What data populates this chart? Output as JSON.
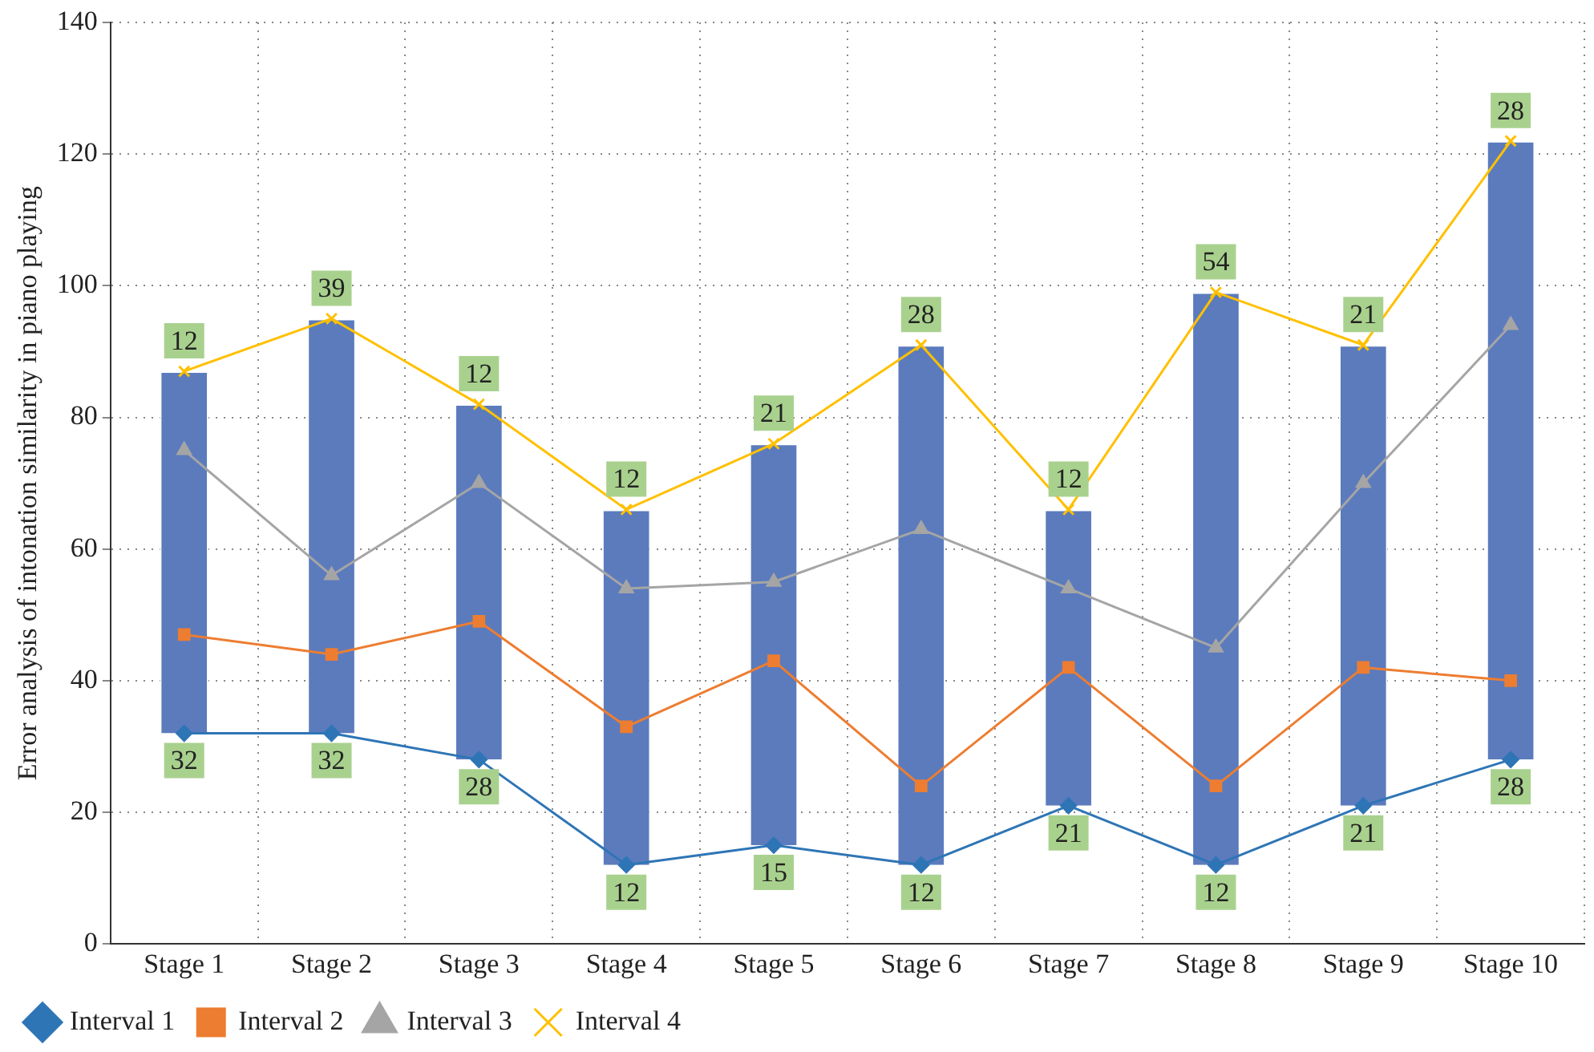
{
  "chart_data": {
    "type": "line",
    "ylabel": "Error analysis of intonation similarity in piano playing",
    "categories": [
      "Stage 1",
      "Stage 2",
      "Stage 3",
      "Stage 4",
      "Stage 5",
      "Stage 6",
      "Stage 7",
      "Stage 8",
      "Stage 9",
      "Stage 10"
    ],
    "ylim": [
      0,
      140
    ],
    "yticks": [
      0,
      20,
      40,
      60,
      80,
      100,
      120,
      140
    ],
    "grid": true,
    "legend": "bottom",
    "line_style": "solid",
    "series": [
      {
        "type": "bar",
        "color": "#5b7bbd",
        "base": [
          32,
          32,
          28,
          12,
          15,
          12,
          21,
          12,
          21,
          28
        ],
        "values": [
          55,
          63,
          54,
          54,
          61,
          79,
          45,
          87,
          70,
          94
        ]
      },
      {
        "name": "Interval 1",
        "color": "#2e75b6",
        "marker": "diamond",
        "values": [
          32,
          32,
          28,
          12,
          15,
          12,
          21,
          12,
          21,
          28
        ],
        "value_labels": [
          "32",
          "32",
          "28",
          "12",
          "15",
          "12",
          "21",
          "12",
          "21",
          "28"
        ]
      },
      {
        "name": "Interval 2",
        "color": "#ed7d31",
        "marker": "square",
        "values": [
          47,
          44,
          49,
          33,
          43,
          24,
          42,
          24,
          42,
          40
        ]
      },
      {
        "name": "Interval 3",
        "color": "#a5a5a5",
        "marker": "triangle",
        "values": [
          75,
          56,
          70,
          54,
          55,
          63,
          54,
          45,
          70,
          94
        ]
      },
      {
        "name": "Interval 4",
        "color": "#ffc000",
        "marker": "cross",
        "values": [
          87,
          95,
          82,
          66,
          76,
          91,
          66,
          99,
          91,
          122
        ]
      }
    ],
    "annotations": [
      {
        "text": "12",
        "x": "Stage 1",
        "y": 87
      },
      {
        "text": "39",
        "x": "Stage 2",
        "y": 95
      },
      {
        "text": "12",
        "x": "Stage 3",
        "y": 82
      },
      {
        "text": "12",
        "x": "Stage 4",
        "y": 66
      },
      {
        "text": "21",
        "x": "Stage 5",
        "y": 76
      },
      {
        "text": "28",
        "x": "Stage 6",
        "y": 91
      },
      {
        "text": "12",
        "x": "Stage 7",
        "y": 66
      },
      {
        "text": "54",
        "x": "Stage 8",
        "y": 99
      },
      {
        "text": "21",
        "x": "Stage 9",
        "y": 91
      },
      {
        "text": "28",
        "x": "Stage 10",
        "y": 122
      }
    ]
  }
}
